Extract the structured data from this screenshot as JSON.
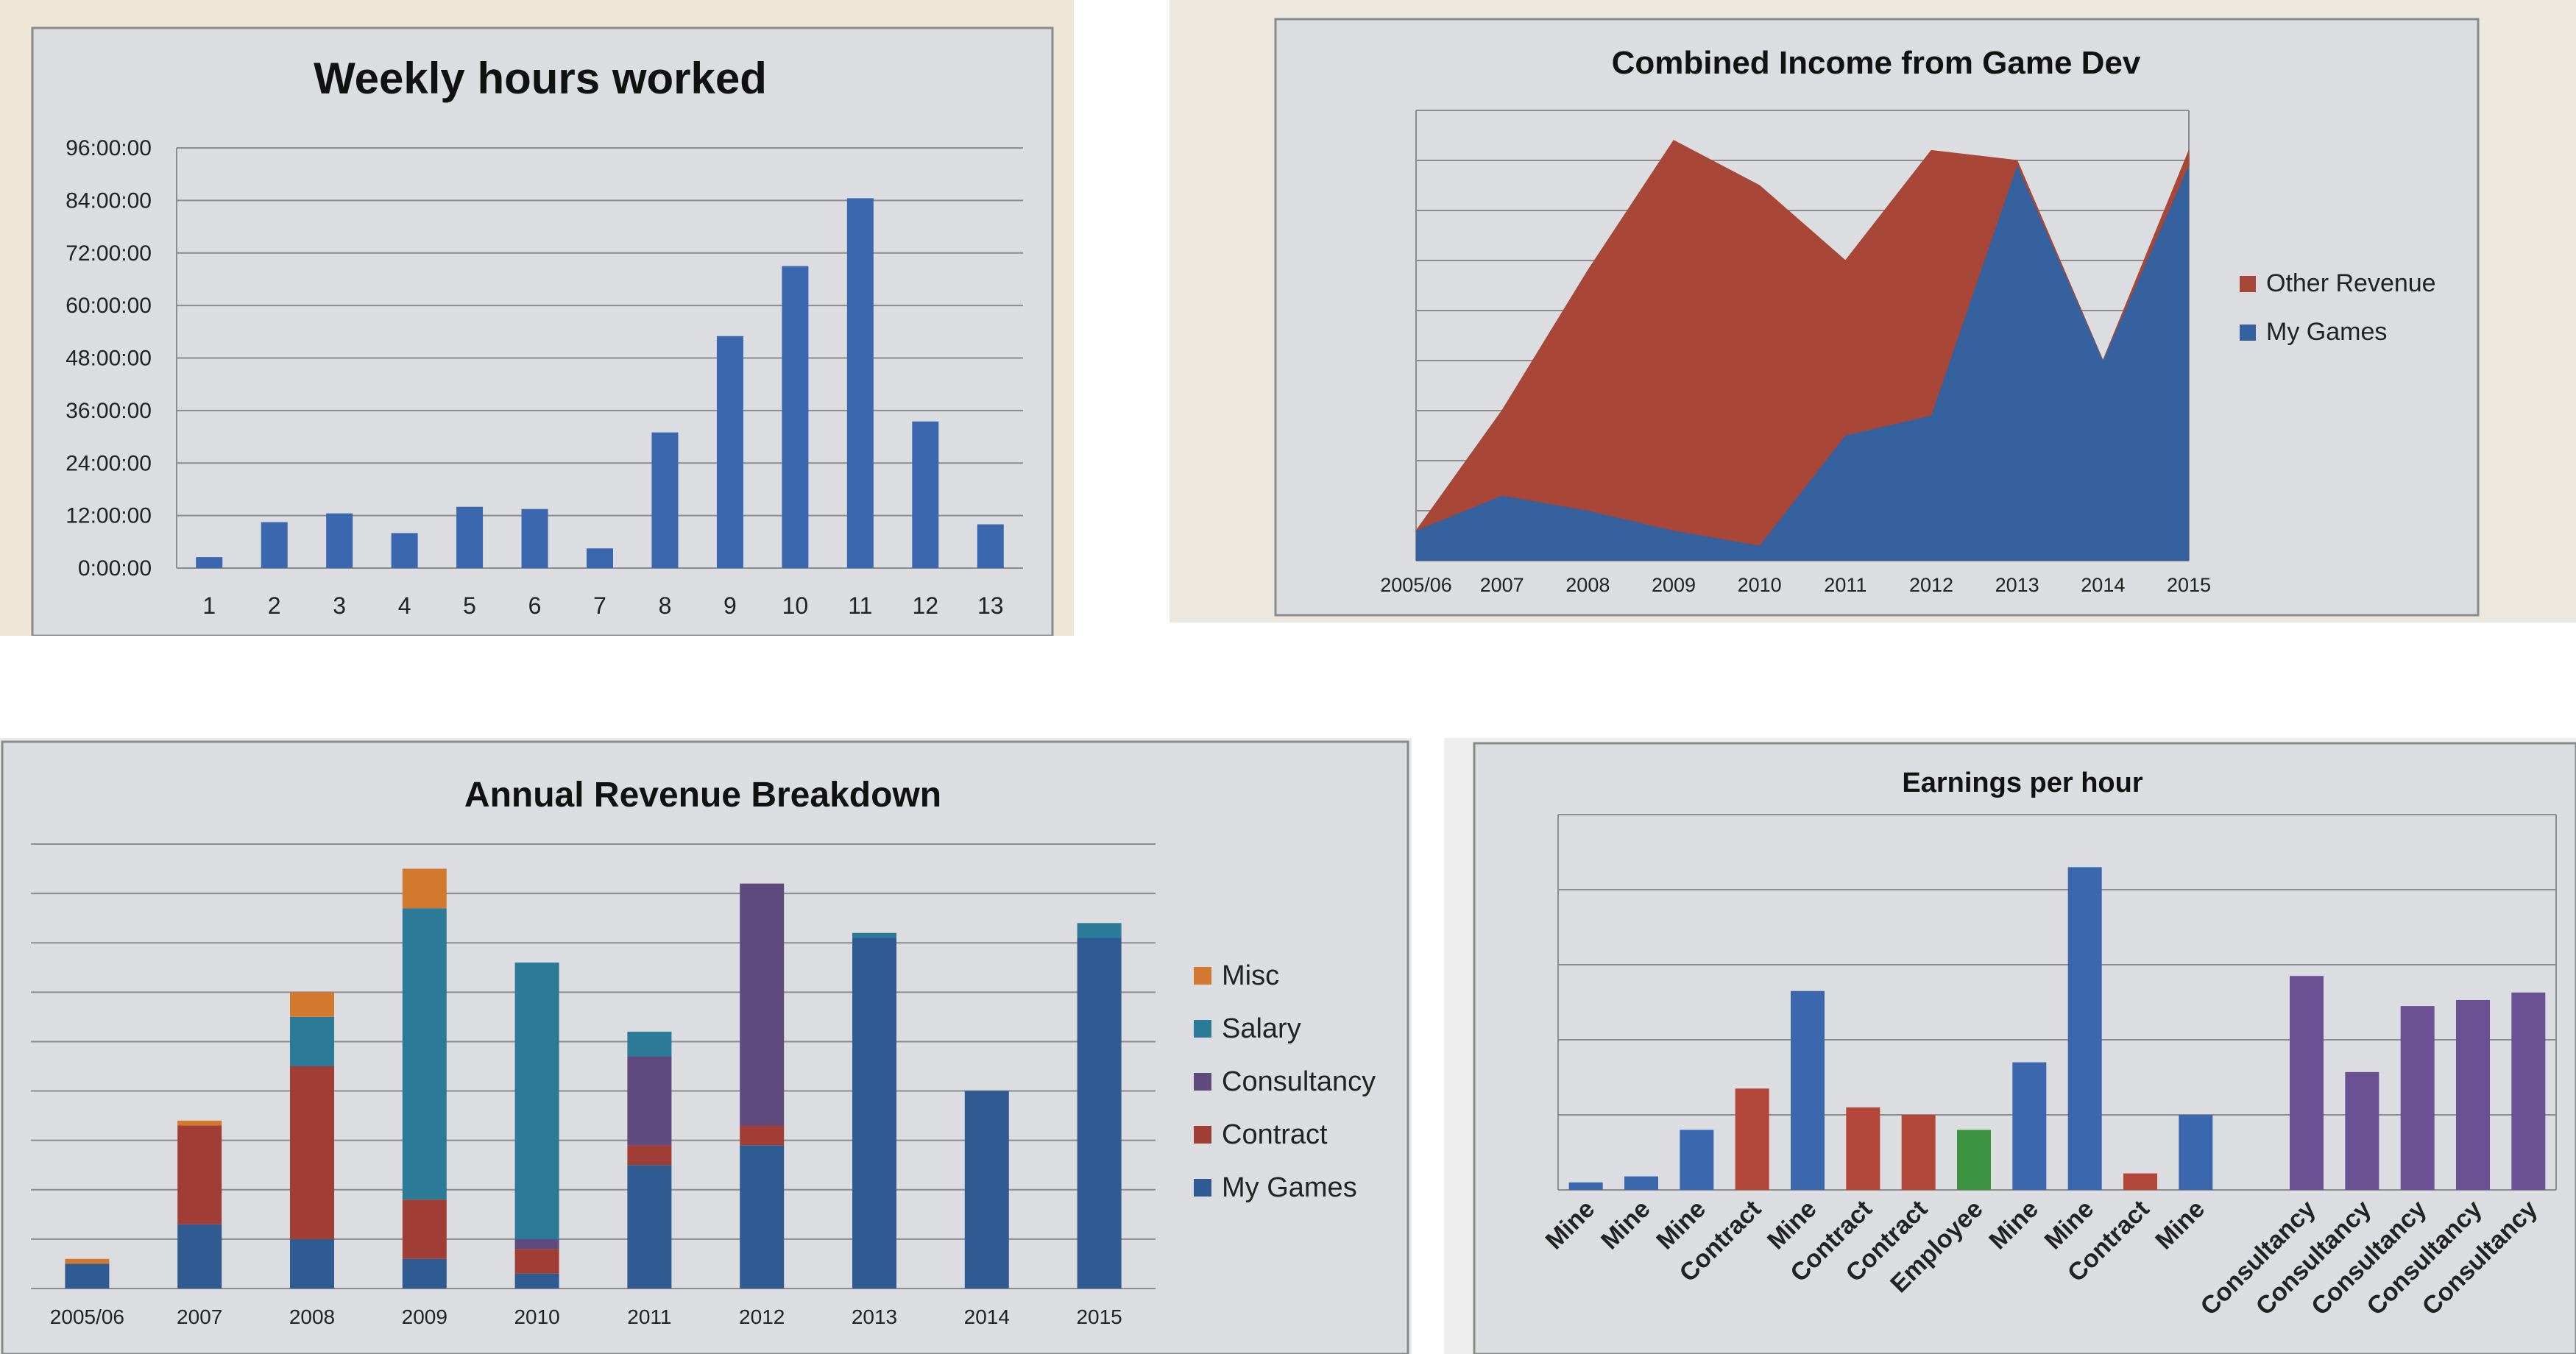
{
  "chart_data": [
    {
      "type": "bar",
      "title": "Weekly hours worked",
      "categories": [
        "1",
        "2",
        "3",
        "4",
        "5",
        "6",
        "7",
        "8",
        "9",
        "10",
        "11",
        "12",
        "13"
      ],
      "values": [
        2.5,
        10.5,
        12.5,
        8,
        14,
        13.5,
        4.5,
        31,
        53,
        69,
        84.5,
        33.5,
        10
      ],
      "y_ticks": [
        "0:00:00",
        "12:00:00",
        "24:00:00",
        "36:00:00",
        "48:00:00",
        "60:00:00",
        "72:00:00",
        "84:00:00",
        "96:00:00"
      ],
      "ylim": [
        0,
        96
      ],
      "grid": true,
      "colors": {
        "bar": "#3a67ad"
      }
    },
    {
      "type": "area",
      "stacked": true,
      "title": "Combined Income from Game Dev",
      "x": [
        "2005/06",
        "2007",
        "2008",
        "2009",
        "2010",
        "2011",
        "2012",
        "2013",
        "2014",
        "2015"
      ],
      "series": [
        {
          "name": "My Games",
          "values": [
            6,
            13,
            10,
            6,
            3,
            25,
            29,
            79,
            40,
            79
          ],
          "color": "#36619f"
        },
        {
          "name": "Other Revenue",
          "values": [
            0,
            17,
            48,
            78,
            72,
            35,
            53,
            1,
            0,
            3
          ],
          "color": "#a84637"
        }
      ],
      "legend_order": [
        "Other Revenue",
        "My Games"
      ],
      "legend_position": "right",
      "ylim": [
        0,
        90
      ],
      "grid": true
    },
    {
      "type": "bar",
      "stacked": true,
      "title": "Annual Revenue Breakdown",
      "categories": [
        "2005/06",
        "2007",
        "2008",
        "2009",
        "2010",
        "2011",
        "2012",
        "2013",
        "2014",
        "2015"
      ],
      "series": [
        {
          "name": "My Games",
          "values": [
            5,
            13,
            10,
            6,
            3,
            25,
            29,
            71,
            40,
            71
          ],
          "color": "#2f5b92"
        },
        {
          "name": "Contract",
          "values": [
            0,
            20,
            35,
            12,
            5,
            4,
            4,
            0,
            0,
            0
          ],
          "color": "#a03e35"
        },
        {
          "name": "Consultancy",
          "values": [
            0,
            0,
            0,
            0,
            2,
            18,
            49,
            0,
            0,
            0
          ],
          "color": "#5f4a7d"
        },
        {
          "name": "Salary",
          "values": [
            0,
            0,
            10,
            59,
            56,
            5,
            0,
            1,
            0,
            3
          ],
          "color": "#2b7a98"
        },
        {
          "name": "Misc",
          "values": [
            1,
            1,
            5,
            8,
            0,
            0,
            0,
            0,
            0,
            0
          ],
          "color": "#d2782f"
        }
      ],
      "legend_order": [
        "Misc",
        "Salary",
        "Consultancy",
        "Contract",
        "My Games"
      ],
      "legend_position": "right",
      "ylim": [
        0,
        90
      ],
      "grid": true
    },
    {
      "type": "bar",
      "title": "Earnings per hour",
      "categories": [
        "Mine",
        "Mine",
        "Mine",
        "Contract",
        "Mine",
        "Contract",
        "Contract",
        "Employee",
        "Mine",
        "Mine",
        "Contract",
        "Mine",
        "",
        "Consultancy",
        "Consultancy",
        "Consultancy",
        "Consultancy",
        "Consultancy"
      ],
      "values": [
        1,
        1.8,
        8,
        13.5,
        26.5,
        11,
        10,
        8,
        17,
        43,
        2.2,
        10,
        0,
        28.5,
        15.7,
        24.5,
        25.3,
        26.3
      ],
      "colors": [
        "#3a67ad",
        "#3a67ad",
        "#3a67ad",
        "#b24639",
        "#3a67ad",
        "#b24639",
        "#b24639",
        "#3c9440",
        "#3a67ad",
        "#3a67ad",
        "#b24639",
        "#3a67ad",
        "#3a67ad",
        "#6a5193",
        "#6a5193",
        "#6a5193",
        "#6a5193",
        "#6a5193"
      ],
      "ylim": [
        0,
        50
      ],
      "grid": true
    }
  ]
}
